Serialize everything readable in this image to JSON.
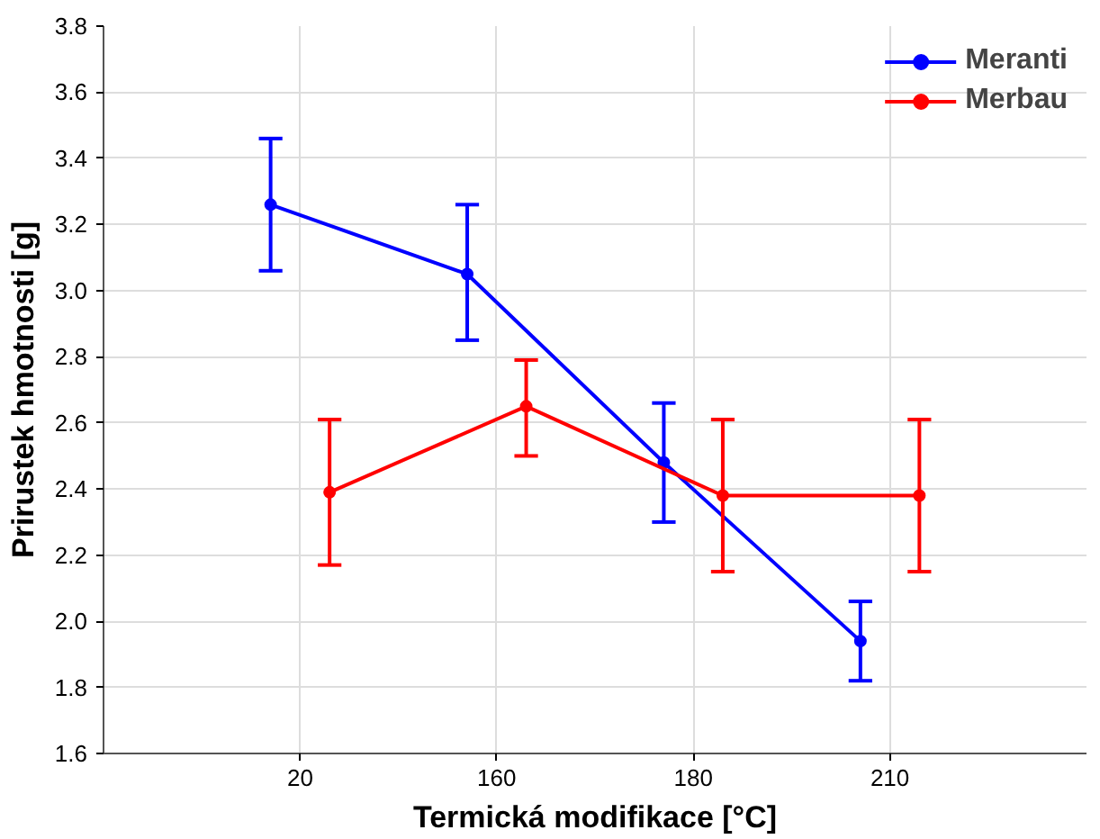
{
  "chart_data": {
    "type": "line",
    "xlabel": "Termická modifikace [°C]",
    "ylabel": "Prirustek hmotnosti [g]",
    "categories": [
      "20",
      "160",
      "180",
      "210"
    ],
    "series": [
      {
        "name": "Meranti",
        "color": "#0000ff",
        "values": [
          3.26,
          3.05,
          2.48,
          1.94
        ],
        "errors": [
          [
            3.06,
            3.46
          ],
          [
            2.85,
            3.26
          ],
          [
            2.3,
            2.66
          ],
          [
            1.82,
            2.06
          ]
        ]
      },
      {
        "name": "Merbau",
        "color": "#ff0000",
        "values": [
          2.39,
          2.65,
          2.38,
          2.38
        ],
        "errors": [
          [
            2.17,
            2.61
          ],
          [
            2.5,
            2.79
          ],
          [
            2.15,
            2.61
          ],
          [
            2.15,
            2.61
          ]
        ]
      }
    ],
    "ylim": [
      1.6,
      3.8
    ],
    "yticks": [
      1.6,
      1.8,
      {
        "value": 2.0,
        "label": "2.0"
      },
      2.2,
      2.4,
      2.6,
      2.8,
      {
        "value": 3.0,
        "label": "3.0"
      },
      3.2,
      3.4,
      3.6,
      3.8
    ],
    "grid": true,
    "legend": "top right",
    "marker": "circle",
    "line_style": "solid"
  }
}
